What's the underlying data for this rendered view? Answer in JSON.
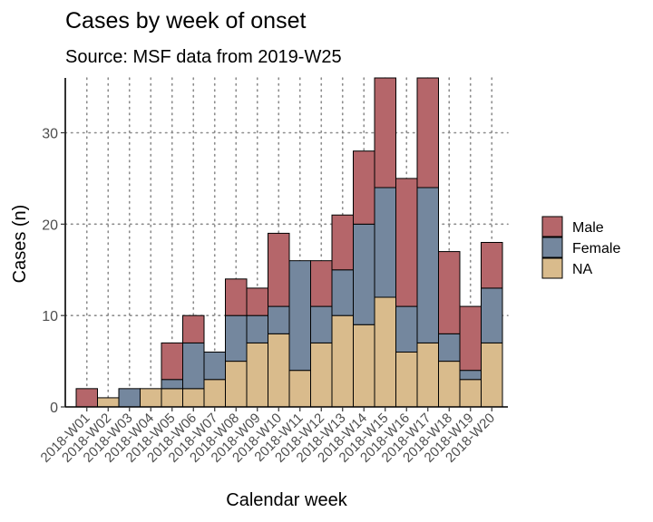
{
  "chart_data": {
    "type": "bar",
    "stacked": true,
    "title": "Cases by week of onset",
    "subtitle": "Source: MSF data from 2019-W25",
    "xlabel": "Calendar week",
    "ylabel": "Cases (n)",
    "ylim": [
      0,
      36
    ],
    "yticks": [
      0,
      10,
      20,
      30
    ],
    "grid": true,
    "legend_position": "right",
    "categories": [
      "2018-W01",
      "2018-W02",
      "2018-W03",
      "2018-W04",
      "2018-W05",
      "2018-W06",
      "2018-W07",
      "2018-W08",
      "2018-W09",
      "2018-W10",
      "2018-W11",
      "2018-W12",
      "2018-W13",
      "2018-W14",
      "2018-W15",
      "2018-W16",
      "2018-W17",
      "2018-W18",
      "2018-W19",
      "2018-W20"
    ],
    "series": [
      {
        "name": "NA",
        "color": "#d9bb8c",
        "values": [
          0,
          1,
          0,
          2,
          2,
          2,
          3,
          5,
          7,
          8,
          4,
          7,
          10,
          9,
          12,
          6,
          7,
          5,
          3,
          7
        ]
      },
      {
        "name": "Female",
        "color": "#74879e",
        "values": [
          0,
          0,
          2,
          0,
          1,
          5,
          3,
          5,
          3,
          3,
          12,
          4,
          5,
          11,
          12,
          5,
          17,
          3,
          1,
          6
        ]
      },
      {
        "name": "Male",
        "color": "#b5666a",
        "values": [
          2,
          0,
          0,
          0,
          4,
          3,
          0,
          4,
          3,
          8,
          0,
          5,
          6,
          8,
          12,
          14,
          12,
          9,
          7,
          5
        ]
      }
    ],
    "legend_order": [
      "Male",
      "Female",
      "NA"
    ]
  }
}
